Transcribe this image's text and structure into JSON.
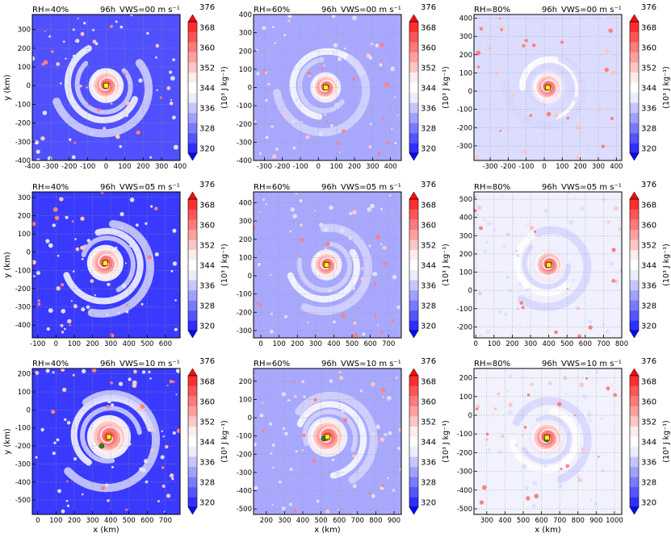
{
  "colorbar": {
    "ticks": [
      "320",
      "328",
      "336",
      "344",
      "352",
      "360",
      "368",
      "376"
    ],
    "label": "(10³ J kg⁻¹)",
    "colors": [
      "#0a0aff",
      "#2f2fff",
      "#5555ff",
      "#7a7aff",
      "#a0a0ff",
      "#c6c6ff",
      "#ececff",
      "#ffffff",
      "#ffecec",
      "#ffc6c6",
      "#ffa0a0",
      "#ff7a7a",
      "#ff5555",
      "#ff2f2f",
      "#ff0a0a"
    ]
  },
  "colors": {
    "center_primary": "#ffff00",
    "center_secondary": "#228b22",
    "time_label": "#ff0000"
  },
  "chart_data": [
    {
      "type": "heatmap",
      "row": 0,
      "col": 0,
      "rh_label": "RH=40%",
      "time_label": "96h",
      "vws_label": "VWS=00 m s⁻¹",
      "xlabel": "",
      "ylabel": "y (km)",
      "xlim": [
        -400,
        400
      ],
      "ylim": [
        -400,
        380
      ],
      "xticks": [
        -400,
        -300,
        -200,
        -100,
        0,
        100,
        200,
        300,
        400
      ],
      "yticks": [
        -400,
        -300,
        -200,
        -100,
        0,
        100,
        200,
        300
      ],
      "center": [
        0,
        0
      ],
      "center2": null,
      "band_radius_km": 270,
      "core_radius_km": 95,
      "background": "#5050ff"
    },
    {
      "type": "heatmap",
      "row": 0,
      "col": 1,
      "rh_label": "RH=60%",
      "time_label": "96h",
      "vws_label": "VWS=00 m s⁻¹",
      "xlabel": "",
      "ylabel": "",
      "xlim": [
        -360,
        460
      ],
      "ylim": [
        -400,
        400
      ],
      "xticks": [
        -300,
        -200,
        -100,
        0,
        100,
        200,
        300,
        400
      ],
      "yticks": [
        -400,
        -300,
        -200,
        -100,
        0,
        100,
        200,
        300,
        400
      ],
      "center": [
        40,
        0
      ],
      "center2": null,
      "band_radius_km": 260,
      "core_radius_km": 85,
      "background": "#a8a8ff"
    },
    {
      "type": "heatmap",
      "row": 0,
      "col": 2,
      "rh_label": "RH=80%",
      "time_label": "96h",
      "vws_label": "VWS=00 m s⁻¹",
      "xlabel": "",
      "ylabel": "",
      "xlim": [
        -390,
        430
      ],
      "ylim": [
        -380,
        420
      ],
      "xticks": [
        -300,
        -200,
        -100,
        0,
        100,
        200,
        300,
        400
      ],
      "yticks": [
        -300,
        -200,
        -100,
        0,
        100,
        200,
        300,
        400
      ],
      "center": [
        20,
        20
      ],
      "center2": null,
      "band_radius_km": 220,
      "core_radius_km": 90,
      "background": "#dcdcff"
    },
    {
      "type": "heatmap",
      "row": 1,
      "col": 0,
      "rh_label": "RH=40%",
      "time_label": "96h",
      "vws_label": "VWS=05 m s⁻¹",
      "xlabel": "",
      "ylabel": "y (km)",
      "xlim": [
        -130,
        680
      ],
      "ylim": [
        -470,
        330
      ],
      "xticks": [
        -100,
        0,
        100,
        200,
        300,
        400,
        500,
        600
      ],
      "yticks": [
        -400,
        -300,
        -200,
        -100,
        0,
        100,
        200,
        300
      ],
      "center": [
        270,
        -60
      ],
      "center2": null,
      "band_radius_km": 270,
      "core_radius_km": 100,
      "background": "#3a3aff"
    },
    {
      "type": "heatmap",
      "row": 1,
      "col": 1,
      "rh_label": "RH=60%",
      "time_label": "96h",
      "vws_label": "VWS=05 m s⁻¹",
      "xlabel": "",
      "ylabel": "",
      "xlim": [
        -40,
        770
      ],
      "ylim": [
        -340,
        460
      ],
      "xticks": [
        0,
        100,
        200,
        300,
        400,
        500,
        600,
        700
      ],
      "yticks": [
        -300,
        -200,
        -100,
        0,
        100,
        200,
        300,
        400
      ],
      "center": [
        360,
        60
      ],
      "center2": null,
      "band_radius_km": 250,
      "core_radius_km": 85,
      "background": "#a8a8ff"
    },
    {
      "type": "heatmap",
      "row": 1,
      "col": 2,
      "rh_label": "RH=80%",
      "time_label": "96h",
      "vws_label": "VWS=05 m s⁻¹",
      "xlabel": "",
      "ylabel": "",
      "xlim": [
        -10,
        800
      ],
      "ylim": [
        -260,
        540
      ],
      "xticks": [
        0,
        100,
        200,
        300,
        400,
        500,
        600,
        700,
        800
      ],
      "yticks": [
        -200,
        -100,
        0,
        100,
        200,
        300,
        400,
        500
      ],
      "center": [
        400,
        140
      ],
      "center2": null,
      "band_radius_km": 230,
      "core_radius_km": 90,
      "background": "#f0f0ff"
    },
    {
      "type": "heatmap",
      "row": 2,
      "col": 0,
      "rh_label": "RH=40%",
      "time_label": "96h",
      "vws_label": "VWS=10 m s⁻¹",
      "xlabel": "x (km)",
      "ylabel": "y (km)",
      "xlim": [
        -30,
        780
      ],
      "ylim": [
        -580,
        230
      ],
      "xticks": [
        0,
        100,
        200,
        300,
        400,
        500,
        600,
        700
      ],
      "yticks": [
        -500,
        -400,
        -300,
        -200,
        -100,
        0,
        100,
        200
      ],
      "center": [
        390,
        -150
      ],
      "center2": [
        350,
        -200
      ],
      "band_radius_km": 280,
      "core_radius_km": 120,
      "background": "#3a3aff"
    },
    {
      "type": "heatmap",
      "row": 2,
      "col": 1,
      "rh_label": "RH=60%",
      "time_label": "96h",
      "vws_label": "VWS=10 m s⁻¹",
      "xlabel": "x (km)",
      "ylabel": "",
      "xlim": [
        130,
        940
      ],
      "ylim": [
        -530,
        270
      ],
      "xticks": [
        200,
        300,
        400,
        500,
        600,
        700,
        800,
        900
      ],
      "yticks": [
        -500,
        -400,
        -300,
        -200,
        -100,
        0,
        100,
        200
      ],
      "center": [
        535,
        -105
      ],
      "center2": [
        515,
        -115
      ],
      "band_radius_km": 260,
      "core_radius_km": 110,
      "background": "#a8a8ff"
    },
    {
      "type": "heatmap",
      "row": 2,
      "col": 2,
      "rh_label": "RH=80%",
      "time_label": "96h",
      "vws_label": "VWS=10 m s⁻¹",
      "xlabel": "x (km)",
      "ylabel": "",
      "xlim": [
        230,
        1040
      ],
      "ylim": [
        -530,
        250
      ],
      "xticks": [
        300,
        400,
        500,
        600,
        700,
        800,
        900,
        1000
      ],
      "yticks": [
        -500,
        -400,
        -300,
        -200,
        -100,
        0,
        100,
        200
      ],
      "center": [
        630,
        -120
      ],
      "center2": [
        630,
        -130
      ],
      "band_radius_km": 230,
      "core_radius_km": 100,
      "background": "#f2f2ff"
    }
  ]
}
